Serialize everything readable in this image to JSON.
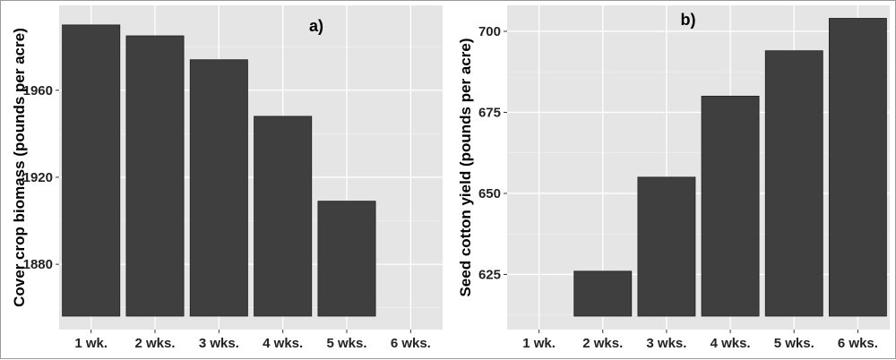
{
  "chart_data": [
    {
      "type": "bar",
      "panel_label": "a)",
      "categories": [
        "1 wk.",
        "2 wks.",
        "3 wks.",
        "4 wks.",
        "5 wks.",
        "6 wks."
      ],
      "values": [
        1990,
        1985,
        1974,
        1948,
        1909,
        1854
      ],
      "xlabel": "",
      "ylabel": "Cover crop biomass (pounds per acre)",
      "ylim": [
        1850,
        1999
      ],
      "yticks": [
        1880,
        1920,
        1960
      ],
      "grid": true,
      "legend": "none",
      "bar_color": "#3f3f3f",
      "panel_background": "#e5e5e5"
    },
    {
      "type": "bar",
      "panel_label": "b)",
      "categories": [
        "1 wk.",
        "2 wks.",
        "3 wks.",
        "4 wks.",
        "5 wks.",
        "6 wks."
      ],
      "values": [
        610,
        626,
        655,
        680,
        694,
        704
      ],
      "xlabel": "",
      "ylabel": "Seed cotton yield (pounds per acre)",
      "ylim": [
        608,
        708
      ],
      "yticks": [
        625,
        650,
        675,
        700
      ],
      "grid": true,
      "legend": "none",
      "bar_color": "#3f3f3f",
      "panel_background": "#e5e5e5"
    }
  ]
}
